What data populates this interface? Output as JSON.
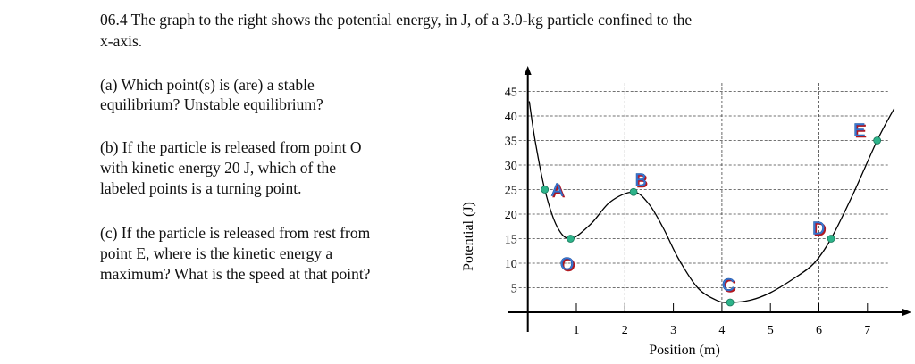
{
  "question": {
    "intro_line1": "06.4 The graph to the right shows the potential energy, in J, of a 3.0-kg particle confined to the",
    "intro_line2": "x-axis.",
    "a_line1": "(a) Which point(s) is (are) a stable",
    "a_line2": "equilibrium? Unstable equilibrium?",
    "b_line1": "(b) If the particle is released from point O",
    "b_line2": "with kinetic energy 20 J, which of the",
    "b_line3": "labeled points is a turning point.",
    "c_line1": "(c) If the particle is released from rest from",
    "c_line2": "point E, where is the kinetic energy a",
    "c_line3": "maximum? What is the speed at that point?"
  },
  "chart_data": {
    "type": "line",
    "title": "",
    "xlabel": "Position (m)",
    "ylabel": "Potential (J)",
    "xlim": [
      0,
      7.6
    ],
    "ylim": [
      0,
      45
    ],
    "xticks": [
      "1",
      "2",
      "3",
      "4",
      "5",
      "6",
      "7"
    ],
    "yticks": [
      "5",
      "10",
      "15",
      "20",
      "25",
      "30",
      "35",
      "40",
      "45"
    ],
    "grid": {
      "horizontal": [
        5,
        10,
        15,
        20,
        25,
        30,
        35,
        40,
        45
      ],
      "vertical": [
        2,
        4,
        6
      ],
      "style": "dashed"
    },
    "curve": [
      [
        0.03,
        43
      ],
      [
        0.15,
        35
      ],
      [
        0.35,
        25
      ],
      [
        0.6,
        17.5
      ],
      [
        0.88,
        15
      ],
      [
        1.3,
        18
      ],
      [
        1.7,
        22.5
      ],
      [
        2.18,
        24.5
      ],
      [
        2.5,
        22
      ],
      [
        2.8,
        17
      ],
      [
        3.1,
        11
      ],
      [
        3.5,
        5
      ],
      [
        3.9,
        2.4
      ],
      [
        4.17,
        2
      ],
      [
        4.6,
        2.5
      ],
      [
        5.0,
        4
      ],
      [
        5.5,
        7
      ],
      [
        5.9,
        10
      ],
      [
        6.25,
        15
      ],
      [
        6.7,
        24
      ],
      [
        7.2,
        35
      ],
      [
        7.55,
        41.5
      ]
    ],
    "points": [
      {
        "label": "A",
        "x": 0.35,
        "y": 25
      },
      {
        "label": "O",
        "x": 0.88,
        "y": 15
      },
      {
        "label": "B",
        "x": 2.18,
        "y": 24.5
      },
      {
        "label": "C",
        "x": 4.17,
        "y": 2
      },
      {
        "label": "D",
        "x": 6.25,
        "y": 15
      },
      {
        "label": "E",
        "x": 7.2,
        "y": 35
      }
    ],
    "colors": {
      "point": "#2db38a",
      "label_fill": "#3a7bd5",
      "label_shadow": "#b0141e",
      "curve": "#000000",
      "grid": "#444444"
    }
  }
}
